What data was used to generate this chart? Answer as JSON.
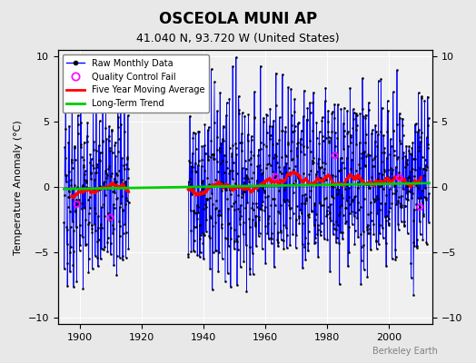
{
  "title": "OSCEOLA MUNI AP",
  "subtitle": "41.040 N, 93.720 W (United States)",
  "ylabel": "Temperature Anomaly (°C)",
  "credit": "Berkeley Earth",
  "xlim": [
    1893,
    2014
  ],
  "ylim": [
    -10.5,
    10.5
  ],
  "yticks": [
    -10,
    -5,
    0,
    5,
    10
  ],
  "xticks": [
    1900,
    1920,
    1940,
    1960,
    1980,
    2000
  ],
  "start_year": 1895,
  "end_year": 2012,
  "raw_color": "#0000ff",
  "moving_avg_color": "#ff0000",
  "trend_color": "#00cc00",
  "qc_color": "#ff00ff",
  "bg_color": "#e8e8e8",
  "plot_bg_color": "#f0f0f0",
  "seed": 42
}
